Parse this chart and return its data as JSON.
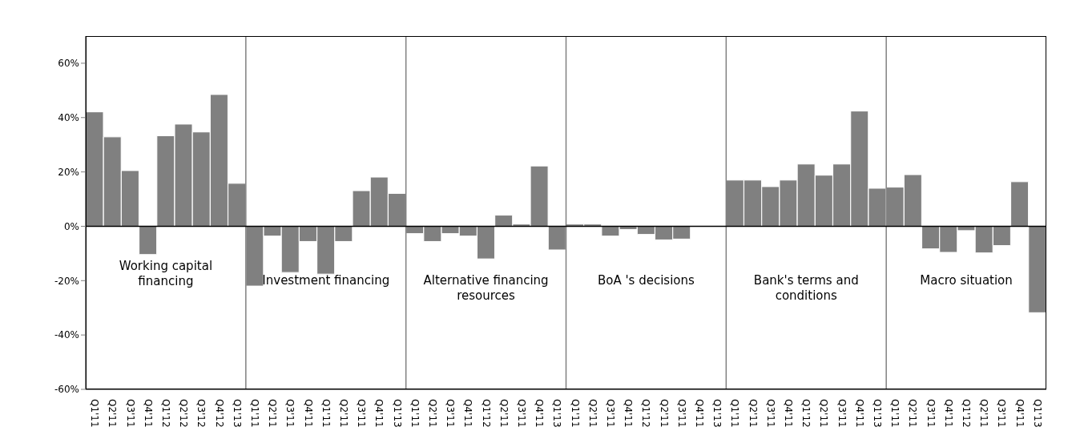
{
  "chart_data": {
    "type": "bar",
    "categories": [
      "Q1'11",
      "Q2'11",
      "Q3'11",
      "Q4'11",
      "Q1'12",
      "Q2'12",
      "Q3'12",
      "Q4'12",
      "Q1'13",
      "Q1'11",
      "Q2'11",
      "Q3'11",
      "Q4'11",
      "Q1'11",
      "Q2'11",
      "Q3'11",
      "Q4'11",
      "Q1'13",
      "Q1'11",
      "Q2'11",
      "Q3'11",
      "Q4'11",
      "Q1'12",
      "Q2'11",
      "Q3'11",
      "Q4'11",
      "Q1'13",
      "Q1'11",
      "Q2'11",
      "Q3'11",
      "Q4'11",
      "Q1'12",
      "Q2'11",
      "Q3'11",
      "Q4'11",
      "Q1'13",
      "Q1'11",
      "Q2'11",
      "Q3'11",
      "Q4'11",
      "Q1'12",
      "Q2'11",
      "Q3'11",
      "Q4'11",
      "Q1'13",
      "Q1'11",
      "Q2'11",
      "Q3'11",
      "Q4'11",
      "Q1'12",
      "Q2'11",
      "Q3'11",
      "Q4'11",
      "Q1'13"
    ],
    "values": [
      42.1,
      32.9,
      20.5,
      -10.4,
      33.3,
      37.6,
      34.7,
      48.5,
      15.8,
      -22,
      -3.6,
      -17,
      -5.6,
      -17.6,
      -5.6,
      13.1,
      18.1,
      12.1,
      -2.7,
      -5.6,
      -2.7,
      -3.6,
      -12,
      4.1,
      0.8,
      22.2,
      -8.7,
      0.8,
      0.8,
      -3.6,
      -1.2,
      -3,
      -5,
      -4.7,
      0,
      0,
      17,
      17,
      14.6,
      17,
      22.9,
      18.8,
      22.9,
      42.4,
      14,
      14.4,
      19,
      -8.3,
      -9.6,
      -1.6,
      -9.8,
      -7.1,
      16.4,
      -31.8
    ],
    "color": "#808080",
    "ylim": [
      -60,
      70
    ],
    "yticks": [
      {
        "value": -60,
        "label": "-60%"
      },
      {
        "value": -40,
        "label": "-40%"
      },
      {
        "value": -20,
        "label": "-20%"
      },
      {
        "value": 0,
        "label": "0%"
      },
      {
        "value": 20,
        "label": "20%"
      },
      {
        "value": 40,
        "label": "40%"
      },
      {
        "value": 60,
        "label": "60%"
      }
    ],
    "annotations": [
      "Working capital financing",
      "Investment financing",
      "Alternative financing resources",
      "BoA 's decisions",
      "Bank's terms and conditions",
      "Macro situation"
    ]
  }
}
